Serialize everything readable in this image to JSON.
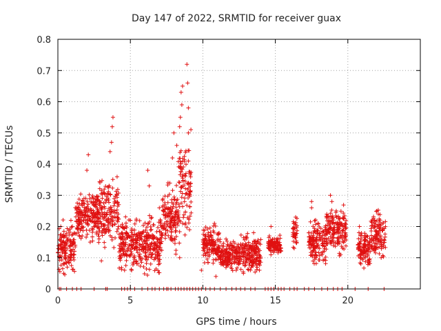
{
  "chart_data": {
    "type": "scatter",
    "title": "Day 147 of 2022, SRMTID for receiver guax",
    "xlabel": "GPS time / hours",
    "ylabel": "SRMTID / TECUs",
    "xlim": [
      0,
      25
    ],
    "ylim": [
      0,
      0.8
    ],
    "x_ticks": [
      0,
      5,
      10,
      15,
      20
    ],
    "x_tick_labels": [
      "0",
      "5",
      "10",
      "15",
      "20"
    ],
    "y_ticks": [
      0,
      0.1,
      0.2,
      0.3,
      0.4,
      0.5,
      0.6,
      0.7,
      0.8
    ],
    "y_tick_labels": [
      "0",
      "0.1",
      "0.2",
      "0.3",
      "0.4",
      "0.5",
      "0.6",
      "0.7",
      "0.8"
    ],
    "grid": true,
    "marker": "+",
    "series": [
      {
        "name": "SRMTID",
        "color": "#e01010",
        "segments": [
          {
            "x0": 0.0,
            "x1": 1.2,
            "base": 0.13,
            "amp": 0.05,
            "spikes": [
              [
                0.4,
                0.05
              ],
              [
                0.2,
                0.2
              ],
              [
                0.9,
                0.22
              ]
            ]
          },
          {
            "x0": 1.2,
            "x1": 2.8,
            "base": 0.23,
            "amp": 0.05,
            "spikes": [
              [
                2.1,
                0.43
              ],
              [
                2.0,
                0.38
              ],
              [
                1.8,
                0.29
              ]
            ]
          },
          {
            "x0": 2.8,
            "x1": 4.2,
            "base": 0.25,
            "amp": 0.08,
            "spikes": [
              [
                3.8,
                0.55
              ],
              [
                3.75,
                0.52
              ],
              [
                3.7,
                0.47
              ],
              [
                3.6,
                0.44
              ],
              [
                3.2,
                0.32
              ],
              [
                3.0,
                0.09
              ]
            ]
          },
          {
            "x0": 4.2,
            "x1": 5.6,
            "base": 0.14,
            "amp": 0.06,
            "spikes": [
              [
                4.6,
                0.06
              ],
              [
                5.0,
                0.22
              ]
            ]
          },
          {
            "x0": 5.6,
            "x1": 7.2,
            "base": 0.14,
            "amp": 0.06,
            "spikes": [
              [
                6.2,
                0.38
              ],
              [
                6.3,
                0.33
              ],
              [
                7.0,
                0.26
              ]
            ]
          },
          {
            "x0": 7.2,
            "x1": 8.3,
            "base": 0.23,
            "amp": 0.07,
            "spikes": [
              [
                7.6,
                0.34
              ],
              [
                8.0,
                0.5
              ],
              [
                8.2,
                0.46
              ],
              [
                7.9,
                0.42
              ]
            ]
          },
          {
            "x0": 8.3,
            "x1": 9.2,
            "base": 0.32,
            "amp": 0.12,
            "spikes": [
              [
                8.9,
                0.72
              ],
              [
                8.95,
                0.66
              ],
              [
                8.6,
                0.65
              ],
              [
                8.5,
                0.63
              ],
              [
                8.55,
                0.59
              ],
              [
                8.45,
                0.55
              ],
              [
                9.0,
                0.58
              ],
              [
                8.4,
                0.52
              ],
              [
                9.0,
                0.5
              ],
              [
                9.0,
                0.41
              ],
              [
                9.0,
                0.34
              ],
              [
                8.4,
                0.1
              ]
            ]
          },
          {
            "x0": 10.0,
            "x1": 11.2,
            "base": 0.14,
            "amp": 0.04,
            "spikes": [
              [
                9.9,
                0.06
              ],
              [
                10.8,
                0.21
              ],
              [
                10.9,
                0.04
              ]
            ]
          },
          {
            "x0": 11.2,
            "x1": 12.6,
            "base": 0.11,
            "amp": 0.03,
            "spikes": [
              [
                11.6,
                0.16
              ],
              [
                12.3,
                0.06
              ]
            ]
          },
          {
            "x0": 12.6,
            "x1": 14.0,
            "base": 0.11,
            "amp": 0.04,
            "spikes": [
              [
                13.5,
                0.18
              ],
              [
                13.9,
                0.06
              ],
              [
                12.8,
                0.05
              ]
            ]
          },
          {
            "x0": 14.5,
            "x1": 15.4,
            "base": 0.14,
            "amp": 0.02,
            "spikes": [
              [
                14.7,
                0.2
              ]
            ]
          },
          {
            "x0": 16.2,
            "x1": 16.5,
            "base": 0.18,
            "amp": 0.03,
            "spikes": [
              [
                16.4,
                0.23
              ],
              [
                16.3,
                0.13
              ]
            ]
          },
          {
            "x0": 17.3,
            "x1": 18.5,
            "base": 0.15,
            "amp": 0.05,
            "spikes": [
              [
                17.5,
                0.28
              ],
              [
                17.5,
                0.26
              ],
              [
                17.8,
                0.1
              ]
            ]
          },
          {
            "x0": 18.5,
            "x1": 19.9,
            "base": 0.19,
            "amp": 0.05,
            "spikes": [
              [
                18.8,
                0.3
              ],
              [
                18.9,
                0.28
              ],
              [
                19.2,
                0.25
              ],
              [
                19.5,
                0.11
              ]
            ]
          },
          {
            "x0": 20.7,
            "x1": 21.6,
            "base": 0.13,
            "amp": 0.04,
            "spikes": [
              [
                20.8,
                0.2
              ],
              [
                20.9,
                0.08
              ]
            ]
          },
          {
            "x0": 21.6,
            "x1": 22.6,
            "base": 0.17,
            "amp": 0.05,
            "spikes": [
              [
                22.0,
                0.25
              ],
              [
                22.1,
                0.24
              ],
              [
                22.3,
                0.1
              ]
            ]
          }
        ],
        "zero_points": [
          0.1,
          0.2,
          0.6,
          1.0,
          1.3,
          1.6,
          2.5,
          3.3,
          3.4,
          4.4,
          4.6,
          4.8,
          5.0,
          5.3,
          5.8,
          6.2,
          6.5,
          6.7,
          7.0,
          7.3,
          7.5,
          7.6,
          7.8,
          8.1,
          8.3,
          8.5,
          8.7,
          8.9,
          9.1,
          9.3,
          9.5,
          9.7,
          9.9,
          10.2,
          10.5,
          10.8,
          11.2,
          11.6,
          12.0,
          12.3,
          12.6,
          12.9,
          13.3,
          13.6,
          14.3,
          14.5,
          14.7,
          14.9,
          15.2,
          15.4,
          15.6,
          16.0,
          16.3,
          16.5,
          17.0,
          17.3,
          17.7,
          18.2,
          18.6,
          19.0,
          19.3,
          19.6,
          20.5,
          21.4,
          22.5
        ]
      }
    ]
  }
}
